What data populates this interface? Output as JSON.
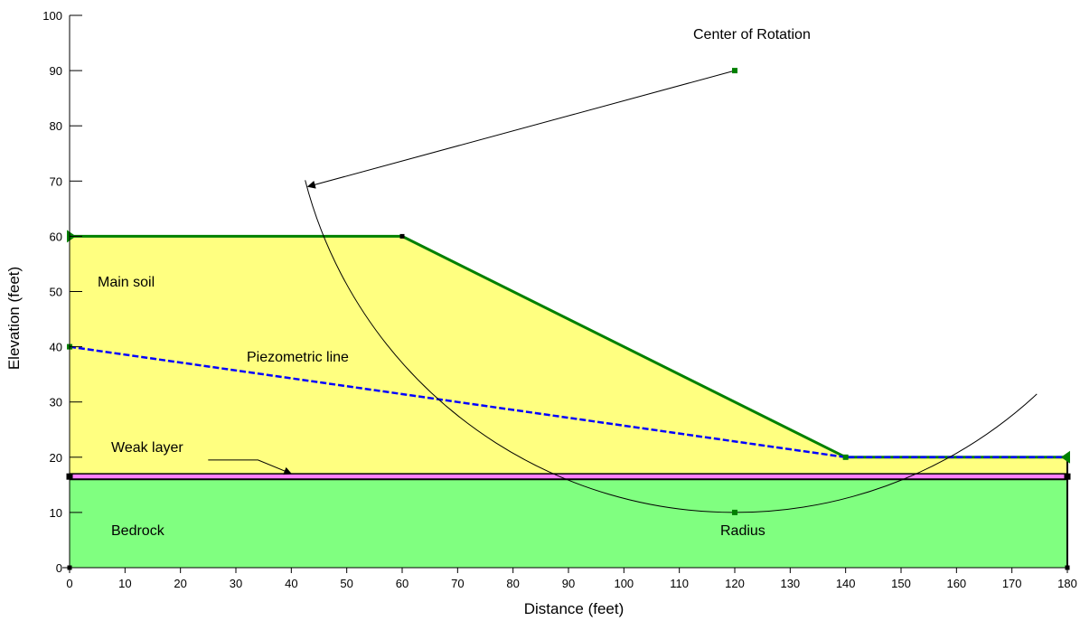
{
  "chart_data": {
    "type": "slope-stability-section",
    "title": "",
    "xlabel": "Distance (feet)",
    "ylabel": "Elevation (feet)",
    "xlim": [
      0,
      180
    ],
    "ylim": [
      0,
      100
    ],
    "x_ticks": [
      0,
      10,
      20,
      30,
      40,
      50,
      60,
      70,
      80,
      90,
      100,
      110,
      120,
      130,
      140,
      150,
      160,
      170,
      180
    ],
    "y_ticks": [
      0,
      10,
      20,
      30,
      40,
      50,
      60,
      70,
      80,
      90,
      100
    ],
    "grid": false,
    "colors": {
      "main_soil_fill": "#ffff80",
      "bedrock_fill": "#80ff80",
      "weak_layer_fill": "#ff80ff",
      "ground_line": "#008000",
      "piezometric_line": "#0000ff",
      "failure_circle": "#000000"
    },
    "layers": {
      "main_soil": {
        "label": "Main soil",
        "polygon": [
          [
            0,
            17
          ],
          [
            0,
            60
          ],
          [
            60,
            60
          ],
          [
            140,
            20
          ],
          [
            180,
            20
          ],
          [
            180,
            17
          ]
        ]
      },
      "weak_layer": {
        "label": "Weak layer",
        "bottom": 16,
        "top": 17
      },
      "bedrock": {
        "label": "Bedrock",
        "bottom": 0,
        "top": 16
      }
    },
    "ground_surface": [
      [
        0,
        60
      ],
      [
        60,
        60
      ],
      [
        140,
        20
      ],
      [
        180,
        20
      ]
    ],
    "piezometric_line": {
      "label": "Piezometric line",
      "points": [
        [
          0,
          40
        ],
        [
          140,
          20
        ],
        [
          180,
          20
        ]
      ]
    },
    "failure_circle": {
      "center": [
        120,
        90
      ],
      "radius": 80,
      "center_label": "Center of Rotation",
      "radius_label": "Radius",
      "radius_point": [
        120,
        10
      ],
      "arc_start_x": 42.5,
      "arc_end_x": 174.5
    },
    "center_arrow": {
      "from": [
        120,
        90
      ],
      "to": [
        43,
        69
      ]
    },
    "weak_layer_leader": {
      "points": [
        [
          25,
          19.5
        ],
        [
          34,
          19.5
        ],
        [
          40,
          17
        ]
      ]
    }
  }
}
